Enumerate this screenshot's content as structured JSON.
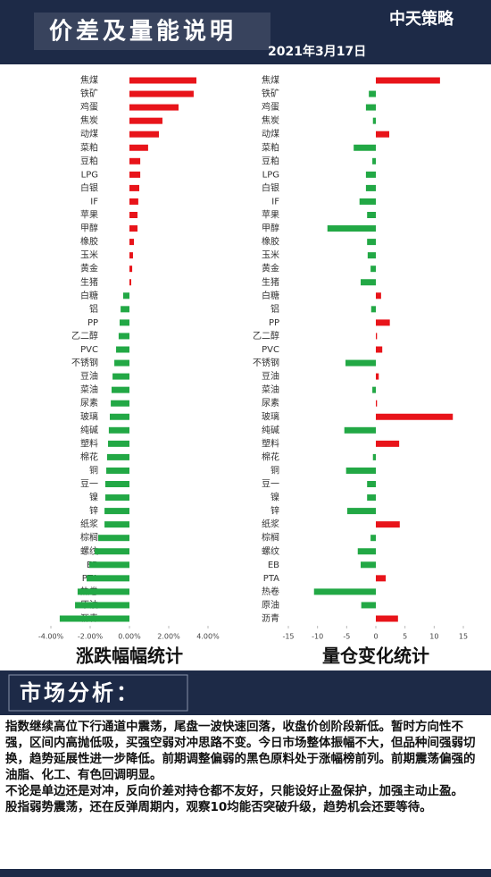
{
  "header": {
    "title": "价差及量能说明",
    "date": "2021年3月17日",
    "logo": "中天策略"
  },
  "chart_data": [
    {
      "type": "hbar",
      "title": "涨跌幅幅统计",
      "categories": [
        "焦煤",
        "铁矿",
        "鸡蛋",
        "焦炭",
        "动煤",
        "菜粕",
        "豆粕",
        "LPG",
        "白银",
        "IF",
        "苹果",
        "甲醇",
        "橡胶",
        "玉米",
        "黄金",
        "生猪",
        "白糖",
        "铝",
        "PP",
        "乙二醇",
        "PVC",
        "不锈钢",
        "豆油",
        "菜油",
        "尿素",
        "玻璃",
        "纯碱",
        "塑料",
        "棉花",
        "铜",
        "豆一",
        "镍",
        "锌",
        "纸浆",
        "棕榈",
        "螺纹",
        "EB",
        "PTA",
        "热卷",
        "原油",
        "沥青"
      ],
      "values": [
        3.41,
        3.27,
        2.5,
        1.68,
        1.5,
        0.95,
        0.55,
        0.55,
        0.5,
        0.45,
        0.41,
        0.41,
        0.23,
        0.18,
        0.14,
        0.09,
        -0.32,
        -0.45,
        -0.5,
        -0.55,
        -0.68,
        -0.77,
        -0.86,
        -0.91,
        -0.95,
        -1.0,
        -1.05,
        -1.09,
        -1.14,
        -1.18,
        -1.23,
        -1.23,
        -1.27,
        -1.27,
        -1.59,
        -1.77,
        -2.05,
        -2.18,
        -2.64,
        -2.77,
        -3.55
      ],
      "positive_color": "#e8141a",
      "negative_color": "#22a845",
      "xlim": [
        -4,
        4
      ],
      "xticks": [
        {
          "value": -4,
          "label": "-4.00%"
        },
        {
          "value": -2,
          "label": "-2.00%"
        },
        {
          "value": 0,
          "label": "0.00%"
        },
        {
          "value": 2,
          "label": "2.00%"
        },
        {
          "value": 4,
          "label": "4.00%"
        }
      ]
    },
    {
      "type": "hbar",
      "title": "量仓变化统计",
      "categories": [
        "焦煤",
        "铁矿",
        "鸡蛋",
        "焦炭",
        "动煤",
        "菜粕",
        "豆粕",
        "LPG",
        "白银",
        "IF",
        "苹果",
        "甲醇",
        "橡胶",
        "玉米",
        "黄金",
        "生猪",
        "白糖",
        "铝",
        "PP",
        "乙二醇",
        "PVC",
        "不锈钢",
        "豆油",
        "菜油",
        "尿素",
        "玻璃",
        "纯碱",
        "塑料",
        "棉花",
        "铜",
        "豆一",
        "镍",
        "锌",
        "纸浆",
        "棕榈",
        "螺纹",
        "EB",
        "PTA",
        "热卷",
        "原油",
        "沥青"
      ],
      "values": [
        11.0,
        -1.2,
        -1.7,
        -0.5,
        2.3,
        -3.8,
        -0.6,
        -1.7,
        -1.7,
        -2.8,
        -1.5,
        -8.3,
        -1.5,
        -1.4,
        -0.9,
        -2.6,
        0.9,
        -0.8,
        2.4,
        0.2,
        1.1,
        -5.2,
        0.5,
        -0.6,
        0.2,
        13.2,
        -5.4,
        4.0,
        -0.5,
        -5.1,
        -1.5,
        -1.5,
        -4.9,
        4.1,
        -0.9,
        -3.1,
        -2.6,
        1.7,
        -10.6,
        -2.5,
        3.8
      ],
      "positive_color": "#e8141a",
      "negative_color": "#22a845",
      "xlim": [
        -15,
        15
      ],
      "xticks": [
        -15,
        -10,
        -5,
        0,
        5,
        10,
        15
      ]
    }
  ],
  "analysis": {
    "heading": "市场分析：",
    "paragraphs": [
      "指数继续高位下行通道中震荡，尾盘一波快速回落，收盘价创阶段新低。暂时方向性不强，区间内高抛低吸，买强空弱对冲思路不变。今日市场整体振幅不大，但品种间强弱切换，趋势延展性进一步降低。前期调整偏弱的黑色原料处于涨幅榜前列。前期震荡偏强的油脂、化工、有色回调明显。",
      "不论是单边还是对冲，反向价差对持仓都不友好，只能设好止盈保护，加强主动止盈。",
      "股指弱势震荡，还在反弹周期内，观察10均能否突破升级，趋势机会还要等待。"
    ]
  }
}
